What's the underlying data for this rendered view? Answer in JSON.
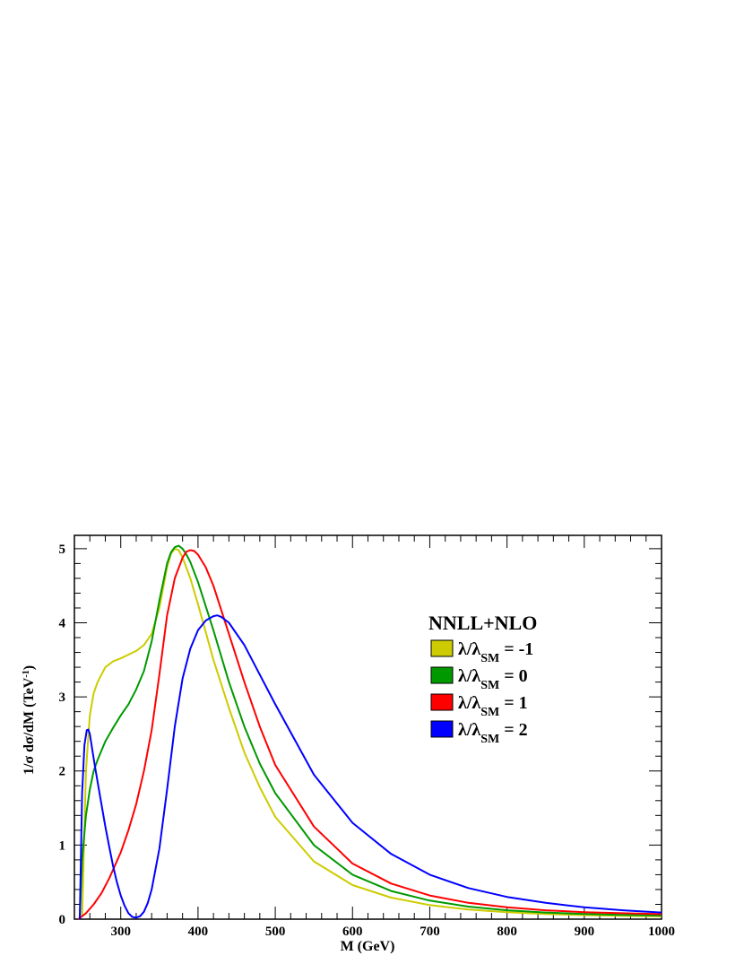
{
  "chart_data": {
    "type": "line",
    "xlabel": "M (GeV)",
    "ylabel_main": "1/σ dσ/dM (TeV",
    "ylabel_sup": "-1",
    "ylabel_end": ")",
    "xlim": [
      240,
      1000
    ],
    "ylim": [
      0,
      5.18
    ],
    "x_ticks": [
      300,
      400,
      500,
      600,
      700,
      800,
      900,
      1000
    ],
    "y_ticks": [
      0,
      1,
      2,
      3,
      4,
      5
    ],
    "grid": false,
    "legend": {
      "title": "NNLL+NLO",
      "position": "upper-right"
    },
    "series": [
      {
        "label_main": "λ/λ",
        "label_sub": "SM",
        "label_rest": " = -1",
        "color": "#cccc00",
        "x": [
          250,
          255,
          260,
          265,
          270,
          280,
          290,
          300,
          310,
          320,
          330,
          340,
          350,
          360,
          365,
          370,
          375,
          380,
          390,
          400,
          420,
          440,
          460,
          480,
          500,
          550,
          600,
          650,
          700,
          750,
          800,
          850,
          900,
          950,
          1000
        ],
        "y": [
          0.05,
          2.0,
          2.75,
          3.05,
          3.2,
          3.4,
          3.48,
          3.52,
          3.57,
          3.62,
          3.7,
          3.85,
          4.2,
          4.75,
          4.93,
          5.0,
          4.98,
          4.88,
          4.6,
          4.25,
          3.5,
          2.85,
          2.25,
          1.78,
          1.38,
          0.78,
          0.46,
          0.29,
          0.19,
          0.13,
          0.095,
          0.07,
          0.055,
          0.045,
          0.038
        ]
      },
      {
        "label_main": "λ/λ",
        "label_sub": "SM",
        "label_rest": " = 0",
        "color": "#009900",
        "x": [
          247,
          250,
          255,
          260,
          265,
          270,
          280,
          290,
          300,
          310,
          320,
          330,
          340,
          350,
          360,
          365,
          370,
          375,
          380,
          385,
          390,
          400,
          420,
          440,
          460,
          480,
          500,
          550,
          600,
          650,
          700,
          750,
          800,
          850,
          900,
          950,
          1000
        ],
        "y": [
          0.0,
          0.8,
          1.4,
          1.75,
          2.0,
          2.15,
          2.4,
          2.58,
          2.75,
          2.9,
          3.1,
          3.35,
          3.75,
          4.3,
          4.8,
          4.95,
          5.02,
          5.04,
          5.0,
          4.92,
          4.82,
          4.55,
          3.9,
          3.2,
          2.6,
          2.1,
          1.7,
          1.0,
          0.6,
          0.38,
          0.25,
          0.17,
          0.12,
          0.09,
          0.07,
          0.058,
          0.048
        ]
      },
      {
        "label_main": "λ/λ",
        "label_sub": "SM",
        "label_rest": " = 1",
        "color": "#ff0000",
        "x": [
          245,
          255,
          265,
          275,
          285,
          300,
          310,
          320,
          330,
          340,
          350,
          360,
          370,
          380,
          385,
          390,
          395,
          400,
          410,
          420,
          440,
          460,
          480,
          500,
          550,
          600,
          650,
          700,
          750,
          800,
          850,
          900,
          950,
          1000
        ],
        "y": [
          0.0,
          0.08,
          0.2,
          0.35,
          0.55,
          0.9,
          1.2,
          1.55,
          2.0,
          2.55,
          3.3,
          4.1,
          4.6,
          4.88,
          4.96,
          4.98,
          4.97,
          4.92,
          4.75,
          4.5,
          3.85,
          3.2,
          2.6,
          2.08,
          1.25,
          0.75,
          0.48,
          0.32,
          0.22,
          0.16,
          0.12,
          0.095,
          0.08,
          0.068
        ]
      },
      {
        "label_main": "λ/λ",
        "label_sub": "SM",
        "label_rest": " = 2",
        "color": "#0000ff",
        "x": [
          247,
          250,
          253,
          256,
          258,
          260,
          263,
          266,
          270,
          275,
          280,
          285,
          290,
          295,
          300,
          305,
          310,
          315,
          320,
          325,
          330,
          335,
          340,
          350,
          360,
          370,
          380,
          390,
          400,
          410,
          420,
          425,
          430,
          440,
          460,
          480,
          500,
          550,
          600,
          650,
          700,
          750,
          800,
          850,
          900,
          950,
          1000
        ],
        "y": [
          0.0,
          1.7,
          2.35,
          2.55,
          2.56,
          2.5,
          2.3,
          2.1,
          1.85,
          1.55,
          1.25,
          0.98,
          0.72,
          0.5,
          0.32,
          0.18,
          0.08,
          0.03,
          0.02,
          0.04,
          0.1,
          0.22,
          0.4,
          0.95,
          1.75,
          2.6,
          3.25,
          3.65,
          3.9,
          4.03,
          4.09,
          4.1,
          4.08,
          4.0,
          3.7,
          3.3,
          2.9,
          1.95,
          1.3,
          0.88,
          0.6,
          0.42,
          0.3,
          0.22,
          0.16,
          0.12,
          0.09
        ]
      }
    ]
  }
}
